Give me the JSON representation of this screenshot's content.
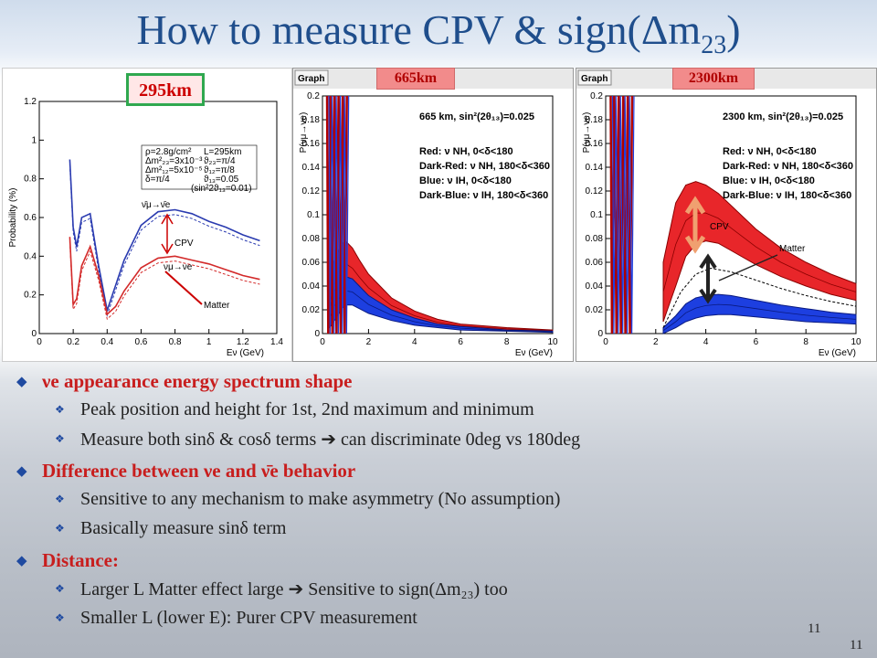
{
  "slide": {
    "title_prefix": "How to measure CPV & sign(",
    "title_delta": "Δm",
    "title_sub": "23",
    "title_suffix": ")",
    "page_number_1": "11",
    "page_number_2": "11"
  },
  "tags": {
    "t295": "295km",
    "t665": "665km",
    "t2300": "2300km"
  },
  "chart_data": [
    {
      "type": "line",
      "panel": "295km",
      "ylabel": "Probability (%)",
      "xlabel": "Eν (GeV)",
      "xlim": [
        0,
        1.4
      ],
      "ylim": [
        0,
        1.2
      ],
      "xticks": [
        "0",
        "0.2",
        "0.4",
        "0.6",
        "0.8",
        "1",
        "1.2",
        "1.4"
      ],
      "yticks": [
        "0",
        "0.2",
        "0.4",
        "0.6",
        "0.8",
        "1",
        "1.2"
      ],
      "parameters": [
        "ρ=2.8g/cm²",
        "Δm²₂₃=3x10⁻³",
        "Δm²₁₂=5x10⁻⁵",
        "δ=π/4",
        "L=295km",
        "ϑ₂₃=π/4",
        "ϑ₁₂=π/8",
        "ϑ₁₃=0.05",
        "(sin²2ϑ₁₃=0.01)"
      ],
      "annotations": {
        "antinu": "ν̄μ→ν̄e",
        "nu": "νμ→νe",
        "cpv": "CPV",
        "matter": "Matter"
      },
      "series": [
        {
          "name": "",
          "color": "#2a3bb0",
          "x": [
            0.18,
            0.2,
            0.22,
            0.25,
            0.3,
            0.35,
            0.4,
            0.45,
            0.5,
            0.6,
            0.7,
            0.8,
            0.9,
            1.0,
            1.1,
            1.2,
            1.3
          ],
          "y": [
            0.9,
            0.55,
            0.45,
            0.6,
            0.62,
            0.35,
            0.12,
            0.25,
            0.38,
            0.56,
            0.63,
            0.64,
            0.62,
            0.58,
            0.55,
            0.51,
            0.48
          ]
        },
        {
          "name": "",
          "color": "#d32a2a",
          "x": [
            0.18,
            0.2,
            0.22,
            0.25,
            0.3,
            0.35,
            0.4,
            0.45,
            0.5,
            0.6,
            0.7,
            0.8,
            0.9,
            1.0,
            1.1,
            1.2,
            1.3
          ],
          "y": [
            0.5,
            0.15,
            0.18,
            0.35,
            0.45,
            0.3,
            0.1,
            0.14,
            0.22,
            0.34,
            0.39,
            0.4,
            0.38,
            0.36,
            0.33,
            0.3,
            0.28
          ]
        }
      ]
    },
    {
      "type": "area",
      "panel": "665km",
      "ylabel": "P(νμ→νe)",
      "xlabel": "Eν (GeV)",
      "xlim": [
        0,
        10
      ],
      "ylim": [
        0,
        0.2
      ],
      "xticks": [
        "0",
        "2",
        "4",
        "6",
        "8",
        "10"
      ],
      "yticks": [
        "0",
        "0.02",
        "0.04",
        "0.06",
        "0.08",
        "0.1",
        "0.12",
        "0.14",
        "0.16",
        "0.18",
        "0.2"
      ],
      "header": "Graph",
      "legend": [
        "665 km, sin²(2θ₁₃)=0.025",
        "Red: ν NH, 0<δ<180",
        "Dark-Red: ν NH, 180<δ<360",
        "Blue: ν IH, 0<δ<180",
        "Dark-Blue: ν IH, 180<δ<360"
      ],
      "series": [
        {
          "name": "Red",
          "x": [
            0.3,
            0.5,
            0.8,
            1.0,
            1.3,
            1.6,
            2,
            3,
            4,
            5,
            6,
            8,
            10
          ],
          "y_low": [
            0.01,
            0.02,
            0.035,
            0.04,
            0.038,
            0.033,
            0.027,
            0.017,
            0.011,
            0.007,
            0.005,
            0.003,
            0.002
          ],
          "y_high": [
            0.04,
            0.06,
            0.075,
            0.078,
            0.072,
            0.062,
            0.05,
            0.03,
            0.019,
            0.012,
            0.008,
            0.005,
            0.003
          ]
        },
        {
          "name": "Blue",
          "x": [
            0.3,
            0.5,
            0.8,
            1.0,
            1.3,
            1.6,
            2,
            3,
            4,
            5,
            6,
            8,
            10
          ],
          "y_low": [
            0.005,
            0.01,
            0.02,
            0.024,
            0.024,
            0.021,
            0.017,
            0.011,
            0.007,
            0.005,
            0.003,
            0.002,
            0.001
          ],
          "y_high": [
            0.02,
            0.035,
            0.045,
            0.048,
            0.046,
            0.04,
            0.032,
            0.02,
            0.013,
            0.008,
            0.006,
            0.003,
            0.002
          ]
        }
      ]
    },
    {
      "type": "area",
      "panel": "2300km",
      "ylabel": "P(νμ→νe)",
      "xlabel": "Eν (GeV)",
      "xlim": [
        0,
        10
      ],
      "ylim": [
        0,
        0.2
      ],
      "xticks": [
        "0",
        "2",
        "4",
        "6",
        "8",
        "10"
      ],
      "yticks": [
        "0",
        "0.02",
        "0.04",
        "0.06",
        "0.08",
        "0.1",
        "0.12",
        "0.14",
        "0.16",
        "0.18",
        "0.2"
      ],
      "header": "Graph",
      "legend": [
        "2300 km, sin²(2θ₁₃)=0.025",
        "Red: ν NH, 0<δ<180",
        "Dark-Red: ν NH, 180<δ<360",
        "Blue: ν IH, 0<δ<180",
        "Dark-Blue: ν IH, 180<δ<360"
      ],
      "annotations": {
        "cpv": "CPV",
        "matter": "Matter"
      },
      "series": [
        {
          "name": "Red",
          "x": [
            2.3,
            2.8,
            3.2,
            3.6,
            4.0,
            4.5,
            5,
            6,
            7,
            8,
            9,
            10
          ],
          "y_low": [
            0.01,
            0.04,
            0.065,
            0.075,
            0.078,
            0.076,
            0.07,
            0.058,
            0.048,
            0.04,
            0.033,
            0.028
          ],
          "y_high": [
            0.06,
            0.11,
            0.125,
            0.128,
            0.125,
            0.118,
            0.108,
            0.088,
            0.072,
            0.06,
            0.05,
            0.042
          ]
        },
        {
          "name": "Blue",
          "x": [
            2.3,
            2.8,
            3.2,
            3.6,
            4.0,
            4.5,
            5,
            6,
            7,
            8,
            9,
            10
          ],
          "y_low": [
            0.0,
            0.005,
            0.01,
            0.013,
            0.015,
            0.016,
            0.016,
            0.014,
            0.012,
            0.01,
            0.009,
            0.008
          ],
          "y_high": [
            0.005,
            0.015,
            0.025,
            0.03,
            0.032,
            0.033,
            0.032,
            0.028,
            0.024,
            0.021,
            0.018,
            0.016
          ]
        },
        {
          "name": "",
          "style": "dashed",
          "x": [
            2.3,
            3,
            3.6,
            4.2,
            5,
            6,
            7,
            8,
            9,
            10
          ],
          "y": [
            0.005,
            0.035,
            0.05,
            0.055,
            0.052,
            0.045,
            0.038,
            0.032,
            0.027,
            0.023
          ]
        }
      ]
    }
  ],
  "bullets": [
    {
      "text": "νe appearance energy spectrum shape",
      "children": [
        "Peak position and height for 1st, 2nd maximum and minimum",
        "Measure both sinδ & cosδ terms ➔ can discriminate 0deg vs 180deg"
      ]
    },
    {
      "text": "Difference between νe and ν̄e behavior",
      "children": [
        "Sensitive to any mechanism to make asymmetry (No assumption)",
        "Basically measure sinδ term"
      ]
    },
    {
      "text": "Distance:",
      "children": [
        "Larger L Matter effect large ➔ Sensitive to sign(Δm₂₃) too",
        "Smaller L (lower E): Purer CPV measurement"
      ]
    }
  ]
}
